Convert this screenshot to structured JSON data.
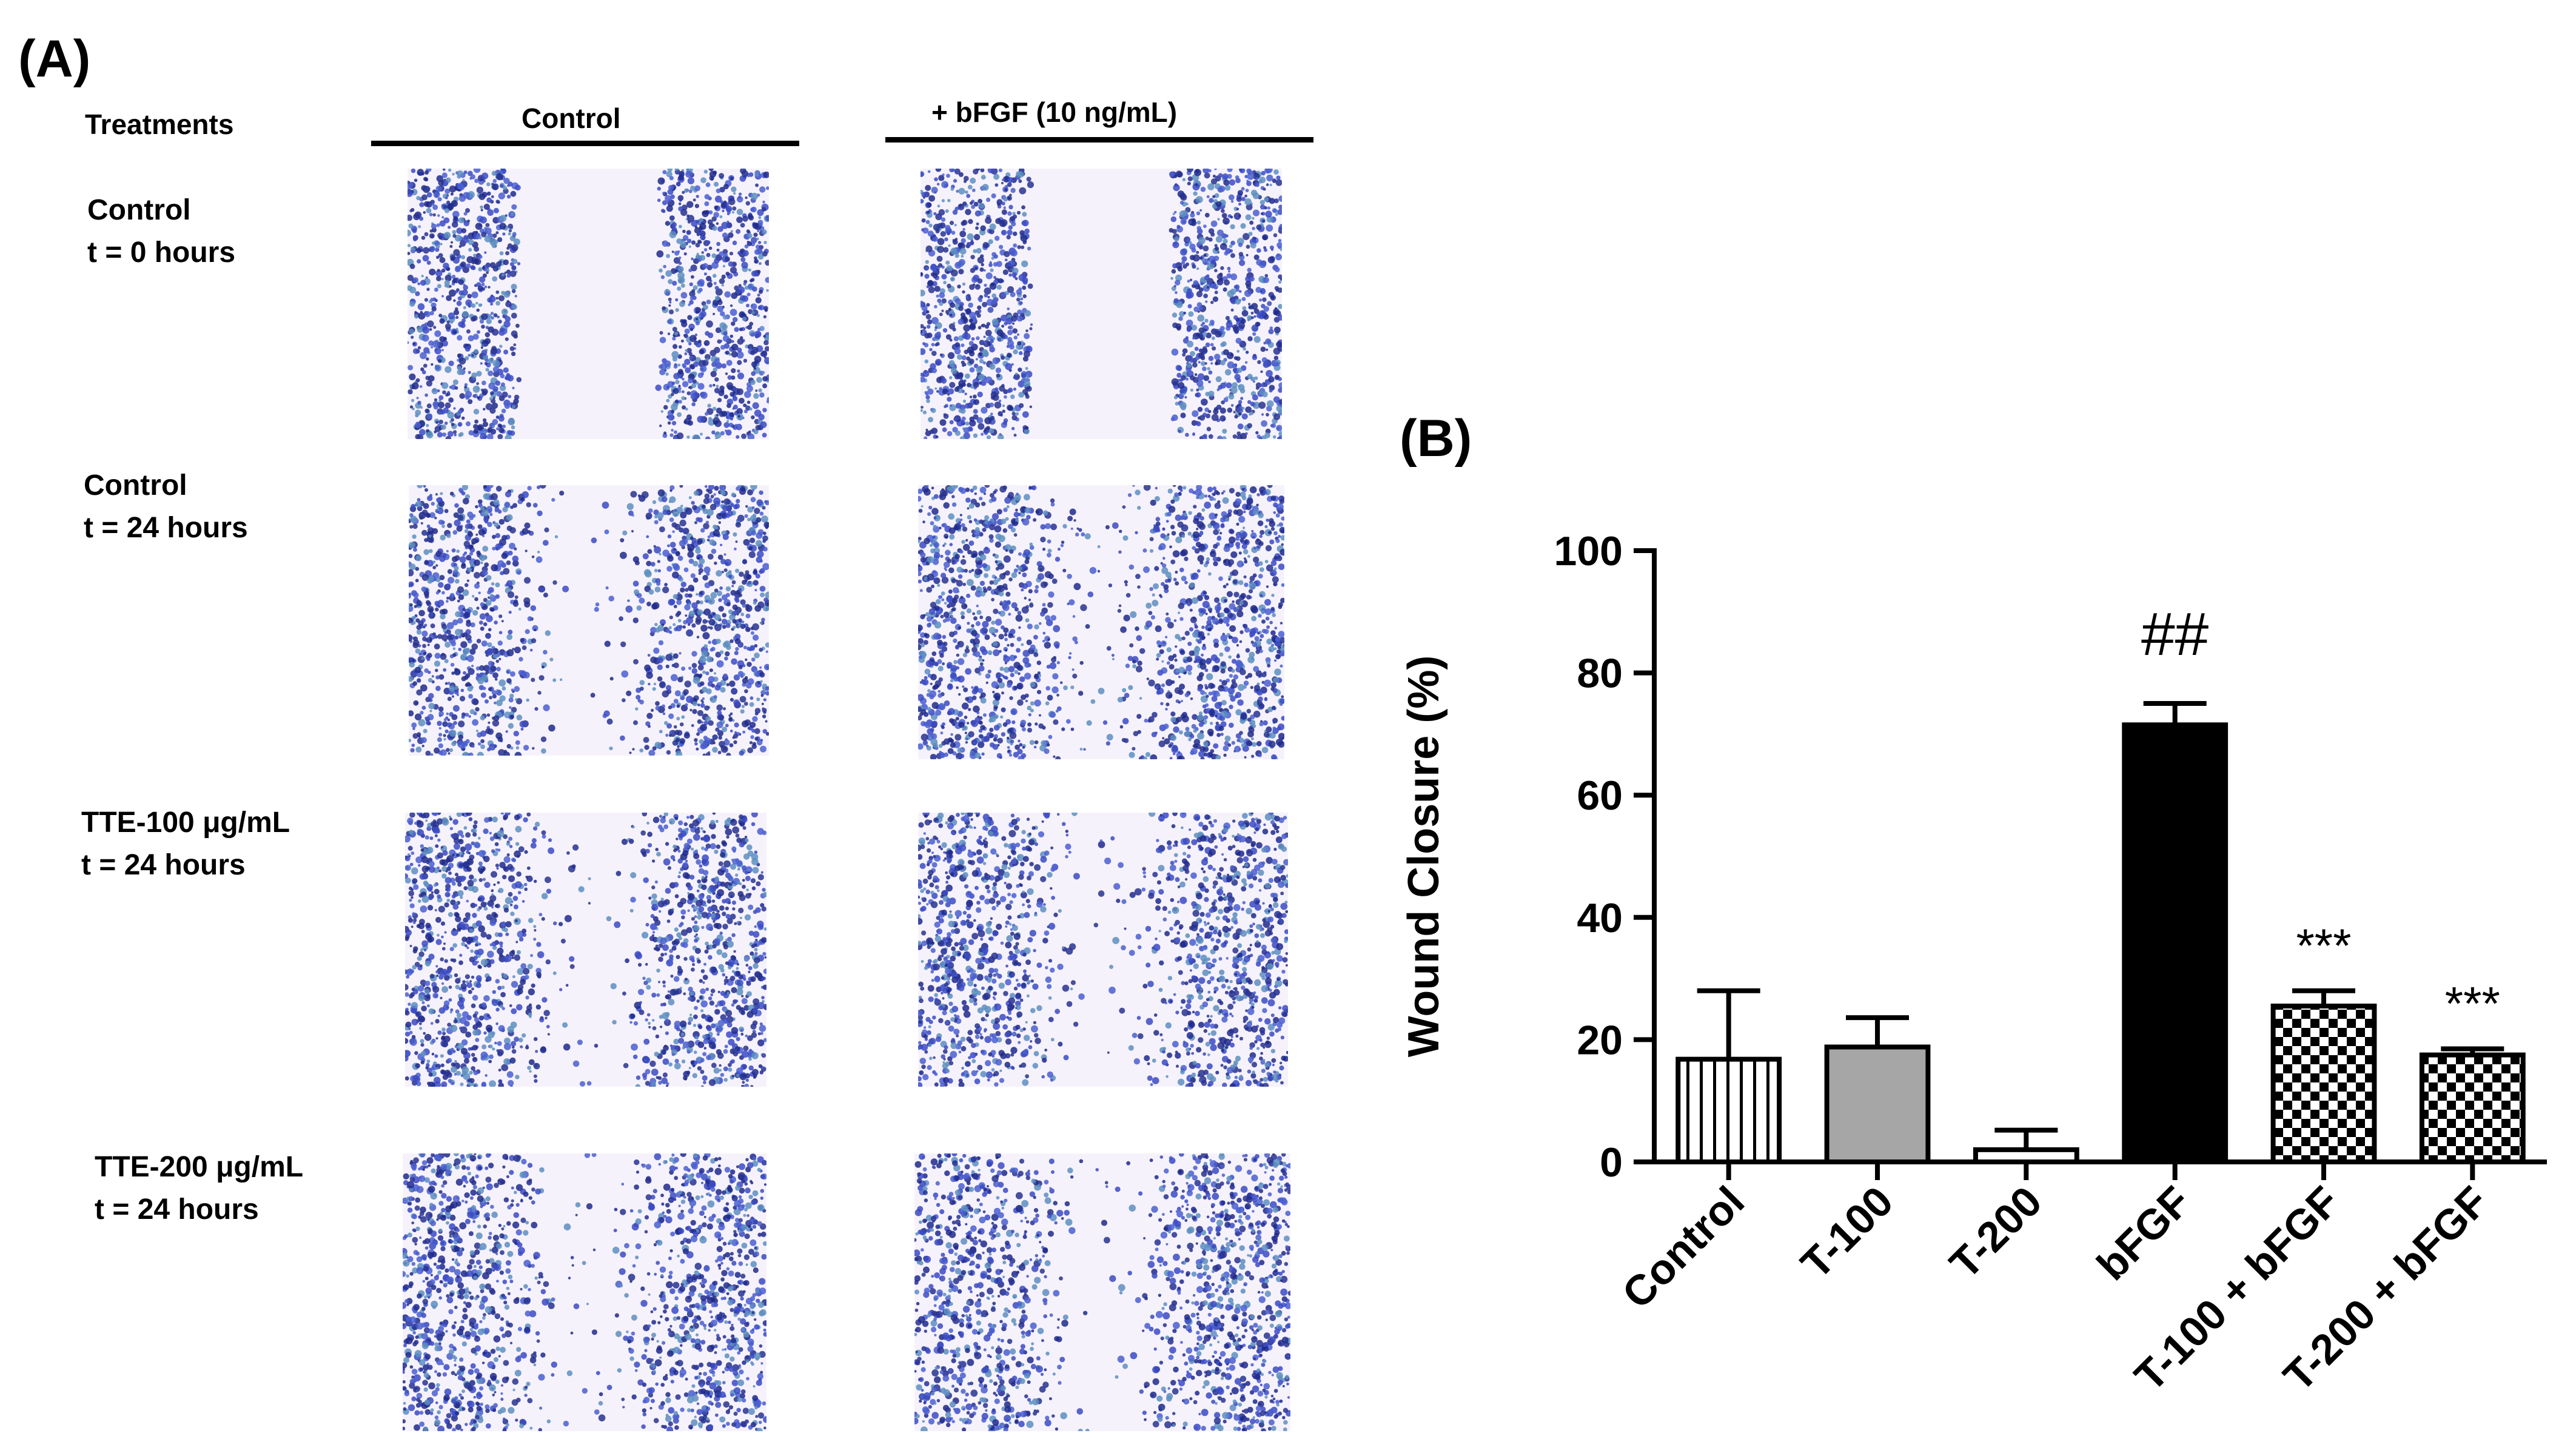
{
  "panel_a": {
    "label": "(A)",
    "treatments_header": "Treatments",
    "col_headers": [
      "Control",
      "+ bFGF (10 ng/mL)"
    ],
    "rows": [
      {
        "name": "Control",
        "time": "t = 0 hours",
        "gap": "full"
      },
      {
        "name": "Control",
        "time": "t = 24 hours",
        "gap": "scattered"
      },
      {
        "name": "TTE-100 μg/mL",
        "time": "t = 24 hours",
        "gap": "scattered"
      },
      {
        "name": "TTE-200 μg/mL",
        "time": "t = 24 hours",
        "gap": "scattered"
      }
    ],
    "image_alt": "Scratch wound micrograph",
    "colors": {
      "cell_dark": "#1f2a8c",
      "cell_mid": "#3b4bc4",
      "cell_light": "#5d8fc0",
      "gap_bg": "#f6f2fb"
    }
  },
  "chart_data": {
    "panel_label": "(B)",
    "type": "bar",
    "title": "",
    "xlabel": "",
    "ylabel": "Wound Closure (%)",
    "ylim": [
      0,
      100
    ],
    "yticks": [
      0,
      20,
      40,
      60,
      80,
      100
    ],
    "grid": false,
    "categories": [
      "Control",
      "T-100",
      "T-200",
      "bFGF",
      "T-100 + bFGF",
      "T-200 + bFGF"
    ],
    "values": [
      16.8,
      18.8,
      2.0,
      71.5,
      25.5,
      17.5
    ],
    "errors": [
      11.2,
      4.8,
      3.2,
      3.5,
      2.5,
      1.0
    ],
    "patterns": [
      "vertical-lines",
      "solid-gray",
      "solid-white",
      "solid-black",
      "checker",
      "checker"
    ],
    "fill_colors": [
      "#ffffff",
      "#a6a6a6",
      "#ffffff",
      "#000000",
      "#ffffff",
      "#ffffff"
    ],
    "annotations": [
      "",
      "",
      "",
      "##",
      "***",
      "***"
    ]
  }
}
